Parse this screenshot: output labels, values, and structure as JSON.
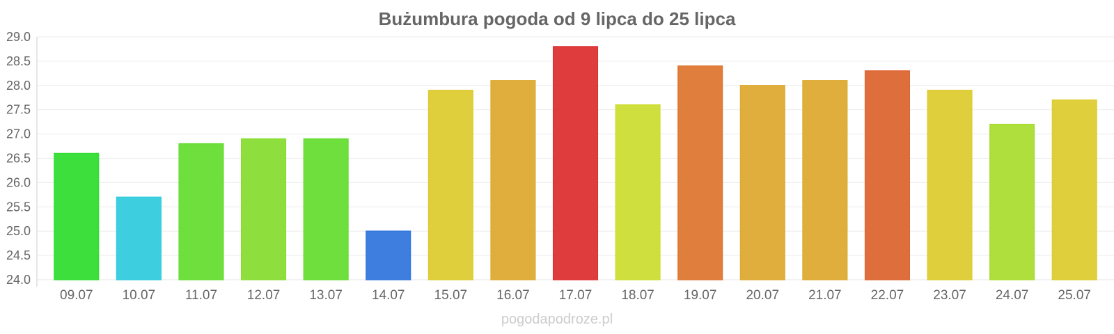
{
  "chart_data": {
    "type": "bar",
    "title": "Bużumbura pogoda od 9 lipca do 25 lipca",
    "categories": [
      "09.07",
      "10.07",
      "11.07",
      "12.07",
      "13.07",
      "14.07",
      "15.07",
      "16.07",
      "17.07",
      "18.07",
      "19.07",
      "20.07",
      "21.07",
      "22.07",
      "23.07",
      "24.07",
      "25.07"
    ],
    "values": [
      26.6,
      25.7,
      26.8,
      26.9,
      26.9,
      25.0,
      27.9,
      28.1,
      28.8,
      27.6,
      28.4,
      28.0,
      28.1,
      28.3,
      27.9,
      27.2,
      27.7
    ],
    "colors": [
      "#33dd33",
      "#33ccdd",
      "#66dd33",
      "#88dd33",
      "#66dd33",
      "#3377dd",
      "#ddcc33",
      "#ddaa33",
      "#dd3333",
      "#ccdd33",
      "#dd7733",
      "#ddaa33",
      "#ddaa33",
      "#dd6633",
      "#ddcc33",
      "#aadd33",
      "#ddcc33"
    ],
    "ylim": [
      24.0,
      29.0
    ],
    "yticks": [
      "24.0",
      "24.5",
      "25.0",
      "25.5",
      "26.0",
      "26.5",
      "27.0",
      "27.5",
      "28.0",
      "28.5",
      "29.0"
    ],
    "grid": true,
    "legend": "none"
  },
  "credit": "pogodapodroze.pl"
}
